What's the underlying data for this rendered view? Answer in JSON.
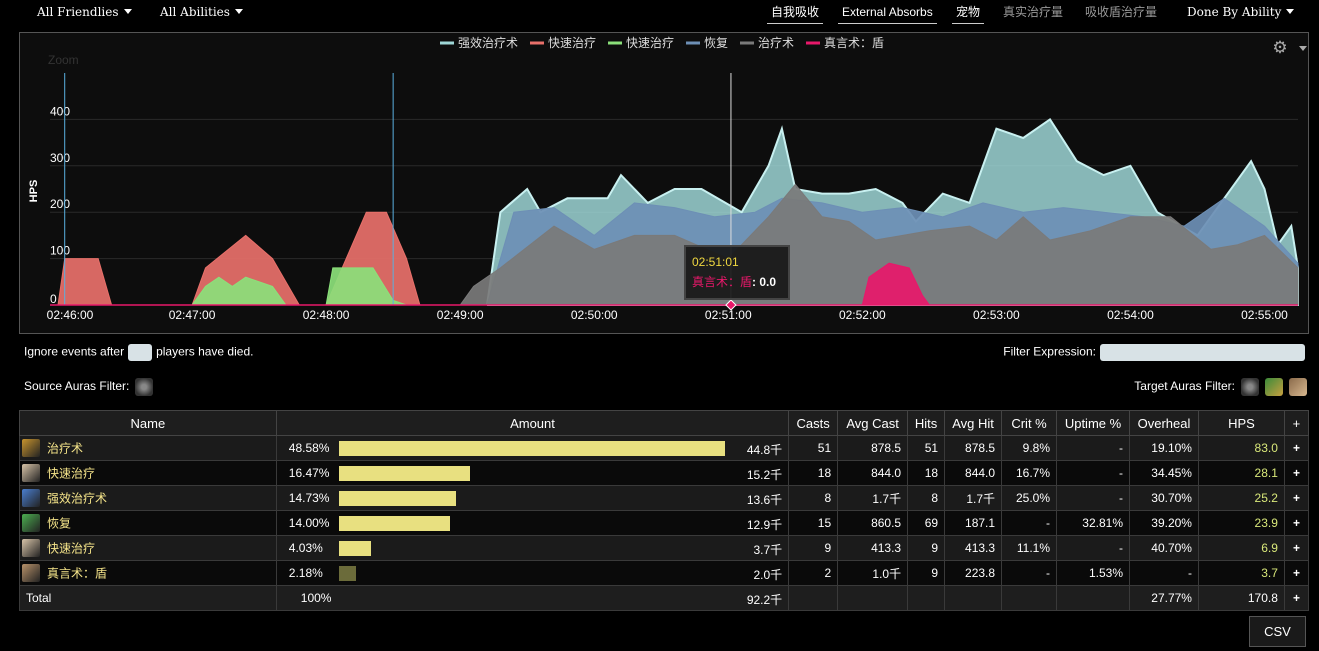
{
  "topbar": {
    "friendlies": "All Friendlies",
    "abilities": "All Abilities",
    "tabs": [
      "自我吸收",
      "External Absorbs",
      "宠物",
      "真实治疗量",
      "吸收盾治疗量"
    ],
    "done_by": "Done By Ability"
  },
  "chart": {
    "zoom_label": "Zoom",
    "legend": [
      {
        "name": "强效治疗术",
        "color": "#9ed6d6"
      },
      {
        "name": "快速治疗",
        "color": "#e8706a"
      },
      {
        "name": "快速治疗",
        "color": "#8be07a"
      },
      {
        "name": "恢复",
        "color": "#6d8fb5"
      },
      {
        "name": "治疗术",
        "color": "#7a7a7a"
      },
      {
        "name": "真言术：盾",
        "color": "#e8186a"
      }
    ],
    "ylabel": "HPS",
    "yticks": [
      "0",
      "100",
      "200",
      "300",
      "400"
    ],
    "xticks": [
      "02:46:00",
      "02:47:00",
      "02:48:00",
      "02:49:00",
      "02:50:00",
      "02:51:00",
      "02:52:00",
      "02:53:00",
      "02:54:00",
      "02:55:00"
    ],
    "tooltip": {
      "time": "02:51:01",
      "series": "真言术：盾",
      "value": "0.0"
    }
  },
  "chart_data": {
    "type": "area",
    "ylabel": "HPS",
    "ylim": [
      0,
      500
    ],
    "x": [
      "02:46:00",
      "02:47:00",
      "02:48:00",
      "02:49:00",
      "02:50:00",
      "02:51:00",
      "02:52:00",
      "02:53:00",
      "02:54:00",
      "02:55:00"
    ],
    "series": [
      {
        "name": "快速治疗",
        "color": "#e8706a",
        "points": [
          [
            0,
            0
          ],
          [
            0.05,
            100
          ],
          [
            0.3,
            100
          ],
          [
            0.4,
            0
          ],
          [
            1,
            0
          ],
          [
            1.1,
            80
          ],
          [
            1.4,
            150
          ],
          [
            1.6,
            100
          ],
          [
            1.8,
            0
          ],
          [
            2,
            0
          ],
          [
            2.15,
            100
          ],
          [
            2.3,
            200
          ],
          [
            2.45,
            200
          ],
          [
            2.6,
            100
          ],
          [
            2.7,
            0
          ],
          [
            3,
            0
          ]
        ]
      },
      {
        "name": "快速治疗",
        "color": "#8be07a",
        "points": [
          [
            1,
            0
          ],
          [
            1.1,
            40
          ],
          [
            1.2,
            60
          ],
          [
            1.3,
            40
          ],
          [
            1.4,
            60
          ],
          [
            1.6,
            40
          ],
          [
            1.7,
            0
          ],
          [
            2,
            0
          ],
          [
            2.05,
            80
          ],
          [
            2.35,
            80
          ],
          [
            2.5,
            10
          ],
          [
            2.6,
            0
          ]
        ]
      },
      {
        "name": "强效治疗术",
        "color": "#9ed6d6",
        "points": [
          [
            3.2,
            0
          ],
          [
            3.3,
            200
          ],
          [
            3.5,
            250
          ],
          [
            3.6,
            200
          ],
          [
            3.8,
            230
          ],
          [
            4.1,
            230
          ],
          [
            4.2,
            280
          ],
          [
            4.4,
            220
          ],
          [
            4.6,
            250
          ],
          [
            4.8,
            250
          ],
          [
            5.1,
            200
          ],
          [
            5.3,
            300
          ],
          [
            5.4,
            380
          ],
          [
            5.5,
            250
          ],
          [
            5.7,
            240
          ],
          [
            5.9,
            240
          ],
          [
            6.1,
            250
          ],
          [
            6.3,
            220
          ],
          [
            6.4,
            180
          ],
          [
            6.6,
            240
          ],
          [
            6.8,
            220
          ],
          [
            7,
            380
          ],
          [
            7.2,
            360
          ],
          [
            7.4,
            400
          ],
          [
            7.6,
            310
          ],
          [
            7.8,
            280
          ],
          [
            8,
            300
          ],
          [
            8.2,
            200
          ],
          [
            8.5,
            150
          ],
          [
            8.7,
            230
          ],
          [
            8.9,
            310
          ],
          [
            9,
            250
          ],
          [
            9.1,
            130
          ],
          [
            9.2,
            170
          ],
          [
            9.25,
            80
          ]
        ]
      },
      {
        "name": "恢复",
        "color": "#6d8fb5",
        "points": [
          [
            3.2,
            0
          ],
          [
            3.4,
            200
          ],
          [
            3.7,
            210
          ],
          [
            4,
            150
          ],
          [
            4.3,
            220
          ],
          [
            4.6,
            210
          ],
          [
            4.9,
            190
          ],
          [
            5.2,
            200
          ],
          [
            5.4,
            230
          ],
          [
            5.7,
            220
          ],
          [
            6,
            200
          ],
          [
            6.3,
            210
          ],
          [
            6.6,
            190
          ],
          [
            6.9,
            220
          ],
          [
            7.2,
            200
          ],
          [
            7.5,
            210
          ],
          [
            7.8,
            200
          ],
          [
            8.1,
            190
          ],
          [
            8.4,
            170
          ],
          [
            8.7,
            230
          ],
          [
            9,
            170
          ],
          [
            9.25,
            90
          ]
        ]
      },
      {
        "name": "治疗术",
        "color": "#7a7a7a",
        "points": [
          [
            3,
            0
          ],
          [
            3.1,
            40
          ],
          [
            3.3,
            80
          ],
          [
            3.7,
            170
          ],
          [
            4,
            120
          ],
          [
            4.3,
            150
          ],
          [
            4.6,
            150
          ],
          [
            5,
            100
          ],
          [
            5.3,
            190
          ],
          [
            5.5,
            260
          ],
          [
            5.7,
            190
          ],
          [
            5.9,
            180
          ],
          [
            6.1,
            140
          ],
          [
            6.5,
            160
          ],
          [
            6.8,
            170
          ],
          [
            7,
            140
          ],
          [
            7.2,
            190
          ],
          [
            7.4,
            140
          ],
          [
            7.7,
            160
          ],
          [
            8,
            190
          ],
          [
            8.3,
            190
          ],
          [
            8.6,
            120
          ],
          [
            8.8,
            130
          ],
          [
            9,
            150
          ],
          [
            9.25,
            80
          ]
        ]
      },
      {
        "name": "真言术：盾",
        "color": "#e8186a",
        "points": [
          [
            6,
            0
          ],
          [
            6.05,
            60
          ],
          [
            6.2,
            90
          ],
          [
            6.35,
            80
          ],
          [
            6.45,
            20
          ],
          [
            6.5,
            0
          ]
        ]
      }
    ]
  },
  "options": {
    "ignore_before": "Ignore events after",
    "ignore_after": "players have died.",
    "filter_expression": "Filter Expression:",
    "source_auras": "Source Auras Filter:",
    "target_auras": "Target Auras Filter:"
  },
  "table": {
    "headers": [
      "Name",
      "Amount",
      "Casts",
      "Avg Cast",
      "Hits",
      "Avg Hit",
      "Crit %",
      "Uptime %",
      "Overheal",
      "HPS",
      "+"
    ],
    "rows": [
      {
        "icon": "heal-spell-icon",
        "icon_color": "#c8942e",
        "name": "治疗术",
        "pct": "48.58%",
        "fraction": 0.4858,
        "bar_color": "#e8e080",
        "amount": "44.8千",
        "casts": "51",
        "avg_cast": "878.5",
        "hits": "51",
        "avg_hit": "878.5",
        "crit": "9.8%",
        "uptime": "-",
        "overheal": "19.10%",
        "hps": "83.0"
      },
      {
        "icon": "flash-heal-icon",
        "icon_color": "#d8c4a8",
        "name": "快速治疗",
        "pct": "16.47%",
        "fraction": 0.1647,
        "bar_color": "#e8e080",
        "amount": "15.2千",
        "casts": "18",
        "avg_cast": "844.0",
        "hits": "18",
        "avg_hit": "844.0",
        "crit": "16.7%",
        "uptime": "-",
        "overheal": "34.45%",
        "hps": "28.1"
      },
      {
        "icon": "greater-heal-icon",
        "icon_color": "#4a7fd0",
        "name": "强效治疗术",
        "pct": "14.73%",
        "fraction": 0.1473,
        "bar_color": "#e8e080",
        "amount": "13.6千",
        "casts": "8",
        "avg_cast": "1.7千",
        "hits": "8",
        "avg_hit": "1.7千",
        "crit": "25.0%",
        "uptime": "-",
        "overheal": "30.70%",
        "hps": "25.2"
      },
      {
        "icon": "renew-icon",
        "icon_color": "#4caf50",
        "name": "恢复",
        "pct": "14.00%",
        "fraction": 0.14,
        "bar_color": "#e8e080",
        "amount": "12.9千",
        "casts": "15",
        "avg_cast": "860.5",
        "hits": "69",
        "avg_hit": "187.1",
        "crit": "-",
        "uptime": "32.81%",
        "overheal": "39.20%",
        "hps": "23.9"
      },
      {
        "icon": "flash-heal-icon",
        "icon_color": "#d8c4a8",
        "name": "快速治疗",
        "pct": "4.03%",
        "fraction": 0.0403,
        "bar_color": "#e8e080",
        "amount": "3.7千",
        "casts": "9",
        "avg_cast": "413.3",
        "hits": "9",
        "avg_hit": "413.3",
        "crit": "11.1%",
        "uptime": "-",
        "overheal": "40.70%",
        "hps": "6.9"
      },
      {
        "icon": "power-word-shield-icon",
        "icon_color": "#b8926a",
        "name": "真言术：盾",
        "pct": "2.18%",
        "fraction": 0.0218,
        "bar_color": "#6b6b3a",
        "amount": "2.0千",
        "casts": "2",
        "avg_cast": "1.0千",
        "hits": "9",
        "avg_hit": "223.8",
        "crit": "-",
        "uptime": "1.53%",
        "overheal": "-",
        "hps": "3.7"
      }
    ],
    "total": {
      "label": "Total",
      "pct": "100%",
      "amount": "92.2千",
      "overheal": "27.77%",
      "hps": "170.8"
    }
  },
  "csv_label": "CSV"
}
